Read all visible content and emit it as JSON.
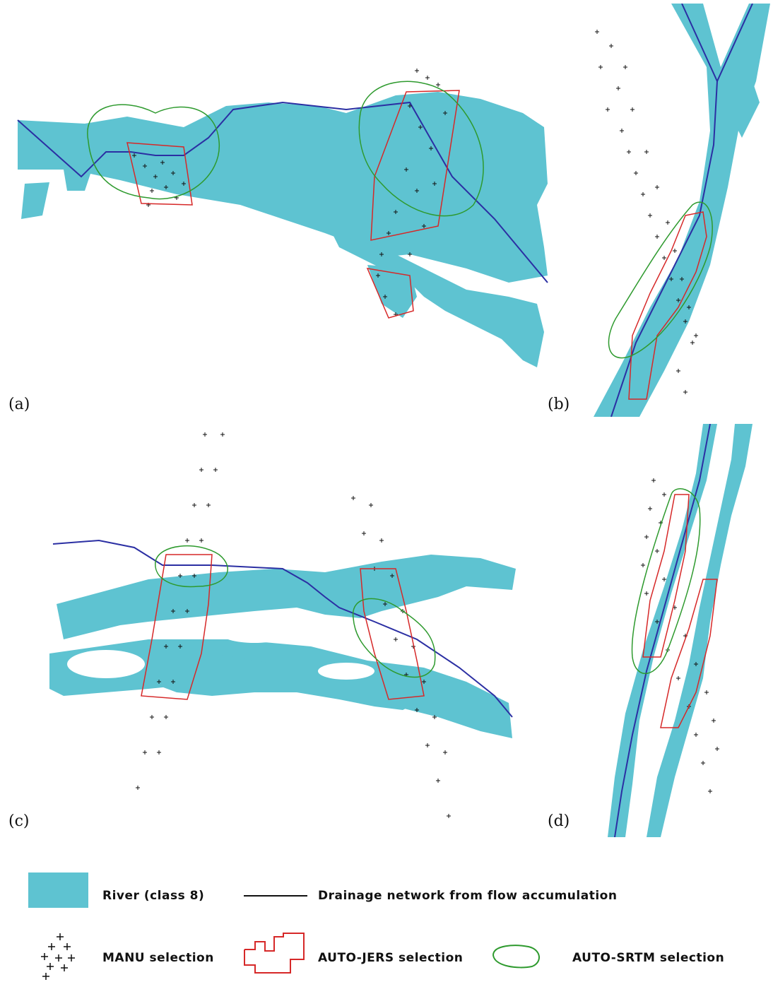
{
  "panels": [
    {
      "id": "a",
      "label": "(a)"
    },
    {
      "id": "b",
      "label": "(b)"
    },
    {
      "id": "c",
      "label": "(c)"
    },
    {
      "id": "d",
      "label": "(d)"
    }
  ],
  "legend": {
    "river": "River (class 8)",
    "drainage": "Drainage network from flow accumulation",
    "manu": "MANU selection",
    "jers": "AUTO-JERS selection",
    "srtm": "AUTO-SRTM selection"
  },
  "colors": {
    "river": "#5ec3d1",
    "drainage": "#2b2fa3",
    "manu": "#111111",
    "jers": "#d62828",
    "srtm": "#2e9a2e"
  }
}
